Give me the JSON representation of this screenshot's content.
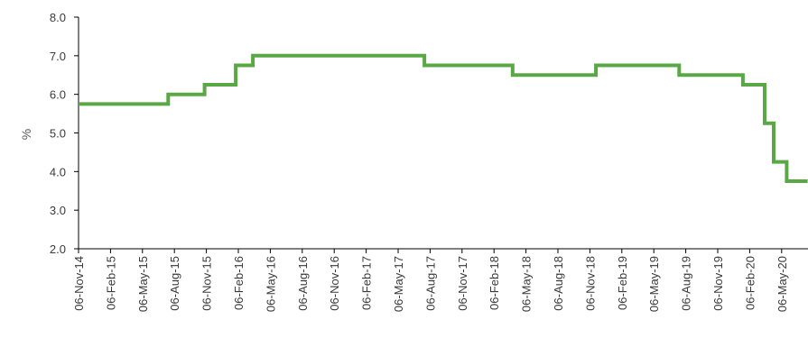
{
  "chart_data": {
    "type": "line",
    "title": "",
    "ylabel": "%",
    "xlabel": "",
    "ylim": [
      2.0,
      8.0
    ],
    "yticks": [
      "2.0",
      "3.0",
      "4.0",
      "5.0",
      "6.0",
      "7.0",
      "8.0"
    ],
    "xtick_labels": [
      "06-Nov-14",
      "06-Feb-15",
      "06-May-15",
      "06-Aug-15",
      "06-Nov-15",
      "06-Feb-16",
      "06-May-16",
      "06-Aug-16",
      "06-Nov-16",
      "06-Feb-17",
      "06-May-17",
      "06-Aug-17",
      "06-Nov-17",
      "06-Feb-18",
      "06-May-18",
      "06-Aug-18",
      "06-Nov-18",
      "06-Feb-19",
      "06-May-19",
      "06-Aug-19",
      "06-Nov-19",
      "06-Feb-20",
      "06-May-20"
    ],
    "grid": false,
    "line_color": "#5aa845",
    "series": [
      {
        "step": true,
        "points": [
          {
            "x": "2014-11-06",
            "y": 5.75
          },
          {
            "x": "2015-07-20",
            "y": 6.0
          },
          {
            "x": "2015-11-01",
            "y": 6.25
          },
          {
            "x": "2016-01-29",
            "y": 6.75
          },
          {
            "x": "2016-03-18",
            "y": 7.0
          },
          {
            "x": "2017-07-21",
            "y": 6.75
          },
          {
            "x": "2018-03-30",
            "y": 6.5
          },
          {
            "x": "2018-11-23",
            "y": 6.75
          },
          {
            "x": "2019-07-19",
            "y": 6.5
          },
          {
            "x": "2020-01-17",
            "y": 6.25
          },
          {
            "x": "2020-03-19",
            "y": 5.25
          },
          {
            "x": "2020-04-14",
            "y": 4.25
          },
          {
            "x": "2020-05-21",
            "y": 3.75
          },
          {
            "x": "2020-07-20",
            "y": 3.75
          }
        ]
      }
    ]
  }
}
